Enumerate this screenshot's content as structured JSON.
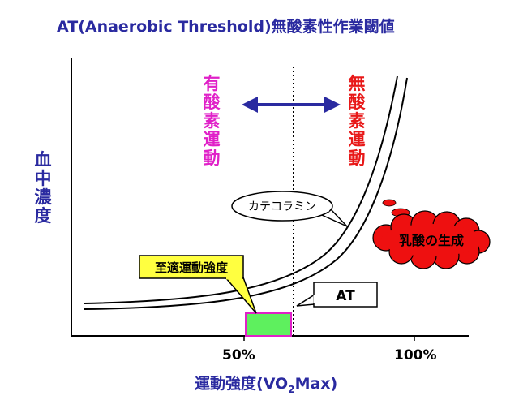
{
  "title": "AT(Anaerobic Threshold)無酸素性作業閾値",
  "y_axis_label": "血中濃度",
  "zone_aerobic": "有酸素運動",
  "zone_anaerobic": "無酸素運動",
  "callout_catecholamine": "カテコラミン",
  "callout_lactate": "乳酸の生成",
  "callout_optimal": "至適運動強度",
  "callout_at": "AT",
  "x_ticks": [
    "50%",
    "100%"
  ],
  "x_axis_label_prefix": "運動強度(",
  "x_axis_label_vo": "VO",
  "x_axis_label_sub": "2",
  "x_axis_label_suffix": "Max)",
  "colors": {
    "title": "#2a2aa0",
    "aerobic": "#e020c8",
    "anaerobic": "#e81818",
    "arrow": "#2a2aa0",
    "optimal_box_fill": "#5ef05e",
    "optimal_box_border": "#e020c8",
    "optimal_callout_fill": "#ffff40",
    "lactate_cloud": "#ee1010"
  }
}
